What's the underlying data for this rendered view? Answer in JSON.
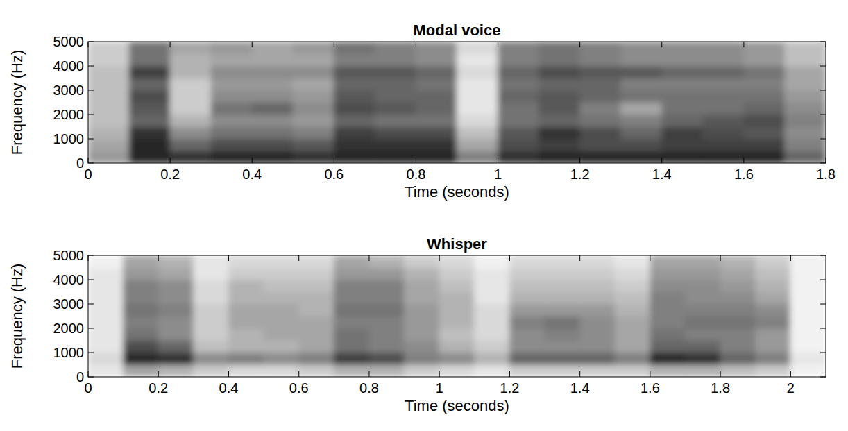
{
  "chart_data": [
    {
      "type": "heatmap",
      "title": "Modal voice",
      "x_label": "Time (seconds)",
      "y_label": "Frequency (Hz)",
      "color": "#000000",
      "xlim": [
        0,
        1.8
      ],
      "ylim": [
        0,
        5000
      ],
      "xticks": [
        0,
        0.2,
        0.4,
        0.6,
        0.8,
        1,
        1.2,
        1.4,
        1.6,
        1.8
      ],
      "yticks": [
        0,
        1000,
        2000,
        3000,
        4000,
        5000
      ],
      "x_bins": [
        0,
        0.1,
        0.2,
        0.3,
        0.4,
        0.5,
        0.6,
        0.7,
        0.8,
        0.9,
        1,
        1.1,
        1.2,
        1.3,
        1.4,
        1.5,
        1.6,
        1.7,
        1.8
      ],
      "y_bins": [
        0,
        500,
        1000,
        1500,
        2000,
        2500,
        3000,
        3500,
        4000,
        4500,
        5000
      ],
      "cells": [
        [
          0.4,
          0.85,
          0.8,
          0.85,
          0.85,
          0.8,
          0.85,
          0.85,
          0.85,
          0.5,
          0.8,
          0.85,
          0.85,
          0.85,
          0.85,
          0.85,
          0.85,
          0.6
        ],
        [
          0.35,
          0.85,
          0.6,
          0.7,
          0.7,
          0.65,
          0.8,
          0.8,
          0.8,
          0.35,
          0.7,
          0.75,
          0.7,
          0.7,
          0.75,
          0.75,
          0.75,
          0.5
        ],
        [
          0.3,
          0.8,
          0.45,
          0.55,
          0.55,
          0.5,
          0.75,
          0.7,
          0.7,
          0.25,
          0.65,
          0.8,
          0.7,
          0.6,
          0.75,
          0.7,
          0.65,
          0.45
        ],
        [
          0.25,
          0.6,
          0.3,
          0.45,
          0.45,
          0.4,
          0.6,
          0.55,
          0.55,
          0.15,
          0.55,
          0.6,
          0.55,
          0.5,
          0.6,
          0.65,
          0.7,
          0.5
        ],
        [
          0.25,
          0.65,
          0.2,
          0.55,
          0.6,
          0.45,
          0.7,
          0.65,
          0.6,
          0.1,
          0.55,
          0.65,
          0.5,
          0.35,
          0.55,
          0.55,
          0.6,
          0.45
        ],
        [
          0.25,
          0.7,
          0.2,
          0.45,
          0.45,
          0.4,
          0.65,
          0.6,
          0.6,
          0.1,
          0.6,
          0.65,
          0.6,
          0.55,
          0.55,
          0.55,
          0.55,
          0.4
        ],
        [
          0.25,
          0.6,
          0.2,
          0.4,
          0.4,
          0.35,
          0.6,
          0.6,
          0.55,
          0.1,
          0.55,
          0.6,
          0.6,
          0.5,
          0.5,
          0.5,
          0.5,
          0.35
        ],
        [
          0.25,
          0.75,
          0.3,
          0.45,
          0.45,
          0.45,
          0.65,
          0.65,
          0.6,
          0.15,
          0.6,
          0.7,
          0.65,
          0.65,
          0.6,
          0.6,
          0.55,
          0.35
        ],
        [
          0.2,
          0.55,
          0.3,
          0.35,
          0.35,
          0.35,
          0.5,
          0.5,
          0.45,
          0.1,
          0.5,
          0.55,
          0.5,
          0.45,
          0.45,
          0.45,
          0.4,
          0.25
        ],
        [
          0.2,
          0.55,
          0.35,
          0.4,
          0.35,
          0.4,
          0.55,
          0.5,
          0.45,
          0.15,
          0.5,
          0.55,
          0.5,
          0.45,
          0.45,
          0.45,
          0.4,
          0.25
        ]
      ]
    },
    {
      "type": "heatmap",
      "title": "Whisper",
      "x_label": "Time (seconds)",
      "y_label": "Frequency (Hz)",
      "color": "#000000",
      "xlim": [
        0,
        2.1
      ],
      "ylim": [
        0,
        5000
      ],
      "xticks": [
        0,
        0.2,
        0.4,
        0.6,
        0.8,
        1,
        1.2,
        1.4,
        1.6,
        1.8,
        2
      ],
      "yticks": [
        0,
        1000,
        2000,
        3000,
        4000,
        5000
      ],
      "x_bins": [
        0,
        0.1,
        0.2,
        0.3,
        0.4,
        0.5,
        0.6,
        0.7,
        0.8,
        0.9,
        1,
        1.1,
        1.2,
        1.3,
        1.4,
        1.5,
        1.6,
        1.7,
        1.8,
        1.9,
        2,
        2.1
      ],
      "y_bins": [
        0,
        500,
        1000,
        1500,
        2000,
        2500,
        3000,
        3500,
        4000,
        4500,
        5000
      ],
      "cells": [
        [
          0.1,
          0.35,
          0.3,
          0.2,
          0.15,
          0.15,
          0.2,
          0.3,
          0.3,
          0.2,
          0.15,
          0.1,
          0.2,
          0.2,
          0.2,
          0.2,
          0.3,
          0.3,
          0.25,
          0.2,
          0.05
        ],
        [
          0.15,
          0.85,
          0.8,
          0.45,
          0.5,
          0.45,
          0.5,
          0.75,
          0.7,
          0.5,
          0.45,
          0.3,
          0.6,
          0.6,
          0.6,
          0.5,
          0.85,
          0.8,
          0.6,
          0.5,
          0.1
        ],
        [
          0.1,
          0.7,
          0.6,
          0.25,
          0.3,
          0.3,
          0.35,
          0.55,
          0.5,
          0.45,
          0.3,
          0.2,
          0.45,
          0.45,
          0.45,
          0.35,
          0.6,
          0.6,
          0.5,
          0.4,
          0.05
        ],
        [
          0.1,
          0.55,
          0.45,
          0.2,
          0.3,
          0.35,
          0.35,
          0.55,
          0.5,
          0.4,
          0.25,
          0.15,
          0.45,
          0.5,
          0.45,
          0.35,
          0.55,
          0.5,
          0.5,
          0.4,
          0.05
        ],
        [
          0.1,
          0.5,
          0.45,
          0.2,
          0.35,
          0.35,
          0.35,
          0.5,
          0.5,
          0.4,
          0.3,
          0.15,
          0.5,
          0.55,
          0.45,
          0.35,
          0.5,
          0.55,
          0.55,
          0.5,
          0.05
        ],
        [
          0.1,
          0.55,
          0.5,
          0.2,
          0.35,
          0.35,
          0.3,
          0.55,
          0.55,
          0.4,
          0.3,
          0.15,
          0.4,
          0.4,
          0.4,
          0.3,
          0.5,
          0.5,
          0.5,
          0.45,
          0.05
        ],
        [
          0.1,
          0.5,
          0.45,
          0.15,
          0.3,
          0.3,
          0.3,
          0.5,
          0.5,
          0.35,
          0.3,
          0.1,
          0.3,
          0.3,
          0.3,
          0.25,
          0.5,
          0.45,
          0.45,
          0.35,
          0.05
        ],
        [
          0.1,
          0.5,
          0.45,
          0.15,
          0.3,
          0.25,
          0.25,
          0.5,
          0.5,
          0.35,
          0.25,
          0.1,
          0.25,
          0.25,
          0.25,
          0.2,
          0.45,
          0.45,
          0.4,
          0.3,
          0.05
        ],
        [
          0.1,
          0.4,
          0.35,
          0.1,
          0.2,
          0.2,
          0.2,
          0.4,
          0.4,
          0.3,
          0.2,
          0.1,
          0.2,
          0.2,
          0.2,
          0.15,
          0.4,
          0.4,
          0.35,
          0.25,
          0.05
        ],
        [
          0.05,
          0.35,
          0.3,
          0.1,
          0.15,
          0.15,
          0.15,
          0.35,
          0.3,
          0.2,
          0.15,
          0.05,
          0.15,
          0.15,
          0.15,
          0.1,
          0.35,
          0.35,
          0.3,
          0.2,
          0.05
        ]
      ]
    }
  ]
}
